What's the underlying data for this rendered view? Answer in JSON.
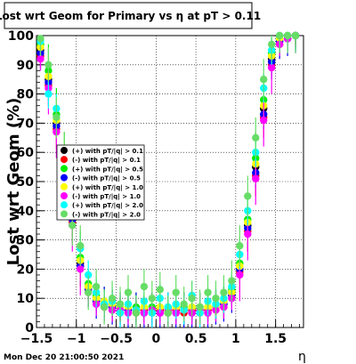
{
  "page": {
    "timestamp": "Mon Dec 20 21:00:50 2021"
  },
  "chart_data": {
    "type": "scatter",
    "title": "Lost wrt Geom for Primary vs  η at pT > 0.11",
    "xlabel": "η",
    "ylabel": "Lost wrt Geom (%)",
    "xlim": [
      -1.5,
      1.85
    ],
    "ylim": [
      0,
      100
    ],
    "x_ticks": [
      -1.5,
      -1,
      -0.5,
      0,
      0.5,
      1,
      1.5
    ],
    "x_tick_labels": [
      "−1.5",
      "−1",
      "−0.5",
      "0",
      "0.5",
      "1",
      "1.5"
    ],
    "y_ticks": [
      0,
      10,
      20,
      30,
      40,
      50,
      60,
      70,
      80,
      90,
      100
    ],
    "y_tick_labels": [
      "0",
      "10",
      "20",
      "30",
      "40",
      "50",
      "60",
      "70",
      "80",
      "90",
      "100"
    ],
    "grid": true,
    "legend_position": "left-middle",
    "series": [
      {
        "name": "(+) with pT/|q| > 0.1",
        "color": "#000000",
        "x": [
          -1.45,
          -1.35,
          -1.25,
          -1.15,
          -1.05,
          -0.95,
          -0.85,
          -0.75,
          -0.65,
          -0.55,
          -0.45,
          -0.35,
          -0.25,
          -0.15,
          -0.05,
          0.05,
          0.15,
          0.25,
          0.35,
          0.45,
          0.55,
          0.65,
          0.75,
          0.85,
          0.95,
          1.05,
          1.15,
          1.25,
          1.35,
          1.45,
          1.55,
          1.65,
          1.75
        ],
        "y": [
          95,
          85,
          70,
          55,
          38,
          22,
          14,
          10,
          8,
          7,
          6,
          6,
          6,
          6,
          6,
          6,
          6,
          6,
          6,
          6,
          6,
          6,
          7,
          8,
          12,
          20,
          35,
          55,
          75,
          92,
          98,
          99,
          100
        ]
      },
      {
        "name": "(-) with pT/|q| > 0.1",
        "color": "#ff0000",
        "x": [
          -1.45,
          -1.35,
          -1.25,
          -1.15,
          -1.05,
          -0.95,
          -0.85,
          -0.75,
          -0.65,
          -0.55,
          -0.45,
          -0.35,
          -0.25,
          -0.15,
          -0.05,
          0.05,
          0.15,
          0.25,
          0.35,
          0.45,
          0.55,
          0.65,
          0.75,
          0.85,
          0.95,
          1.05,
          1.15,
          1.25,
          1.35,
          1.45,
          1.55,
          1.65,
          1.75
        ],
        "y": [
          93,
          83,
          68,
          52,
          36,
          21,
          13,
          9,
          7,
          6,
          5,
          6,
          5,
          6,
          5,
          6,
          5,
          6,
          5,
          6,
          5,
          6,
          6,
          7,
          11,
          19,
          33,
          52,
          72,
          90,
          97,
          99,
          100
        ]
      },
      {
        "name": "(+) with pT/|q| > 0.5",
        "color": "#00ee00",
        "x": [
          -1.45,
          -1.35,
          -1.25,
          -1.15,
          -1.05,
          -0.95,
          -0.85,
          -0.75,
          -0.65,
          -0.55,
          -0.45,
          -0.35,
          -0.25,
          -0.15,
          -0.05,
          0.05,
          0.15,
          0.25,
          0.35,
          0.45,
          0.55,
          0.65,
          0.75,
          0.85,
          0.95,
          1.05,
          1.15,
          1.25,
          1.35,
          1.45,
          1.55,
          1.65,
          1.75
        ],
        "y": [
          97,
          88,
          73,
          58,
          40,
          24,
          15,
          11,
          9,
          8,
          7,
          7,
          7,
          7,
          7,
          7,
          7,
          7,
          7,
          7,
          7,
          7,
          8,
          9,
          13,
          22,
          37,
          58,
          78,
          94,
          99,
          100,
          100
        ]
      },
      {
        "name": "(-) with pT/|q| > 0.5",
        "color": "#0000ff",
        "x": [
          -1.45,
          -1.35,
          -1.25,
          -1.15,
          -1.05,
          -0.95,
          -0.85,
          -0.75,
          -0.65,
          -0.55,
          -0.45,
          -0.35,
          -0.25,
          -0.15,
          -0.05,
          0.05,
          0.15,
          0.25,
          0.35,
          0.45,
          0.55,
          0.65,
          0.75,
          0.85,
          0.95,
          1.05,
          1.15,
          1.25,
          1.35,
          1.45,
          1.55,
          1.65,
          1.75
        ],
        "y": [
          94,
          84,
          69,
          53,
          37,
          21,
          13,
          9,
          8,
          7,
          6,
          6,
          6,
          5,
          6,
          5,
          6,
          5,
          6,
          5,
          6,
          5,
          7,
          8,
          11,
          20,
          34,
          53,
          73,
          91,
          98,
          99,
          100
        ]
      },
      {
        "name": "(+) with pT/|q| > 1.0",
        "color": "#ffff00",
        "x": [
          -1.45,
          -1.35,
          -1.25,
          -1.15,
          -1.05,
          -0.95,
          -0.85,
          -0.75,
          -0.65,
          -0.55,
          -0.45,
          -0.35,
          -0.25,
          -0.15,
          -0.05,
          0.05,
          0.15,
          0.25,
          0.35,
          0.45,
          0.55,
          0.65,
          0.75,
          0.85,
          0.95,
          1.05,
          1.15,
          1.25,
          1.35,
          1.45,
          1.55,
          1.65,
          1.75
        ],
        "y": [
          96,
          86,
          71,
          56,
          39,
          23,
          14,
          10,
          9,
          8,
          7,
          7,
          6,
          7,
          6,
          7,
          6,
          7,
          6,
          7,
          6,
          7,
          7,
          9,
          12,
          21,
          36,
          56,
          76,
          93,
          99,
          100,
          100
        ]
      },
      {
        "name": "(-) with pT/|q| > 1.0",
        "color": "#ff00ff",
        "x": [
          -1.45,
          -1.35,
          -1.25,
          -1.15,
          -1.05,
          -0.95,
          -0.85,
          -0.75,
          -0.65,
          -0.55,
          -0.45,
          -0.35,
          -0.25,
          -0.15,
          -0.05,
          0.05,
          0.15,
          0.25,
          0.35,
          0.45,
          0.55,
          0.65,
          0.75,
          0.85,
          0.95,
          1.05,
          1.15,
          1.25,
          1.35,
          1.45,
          1.55,
          1.65,
          1.75
        ],
        "y": [
          92,
          82,
          67,
          51,
          35,
          20,
          12,
          8,
          7,
          6,
          6,
          5,
          6,
          5,
          6,
          5,
          6,
          5,
          6,
          5,
          6,
          5,
          6,
          7,
          10,
          18,
          32,
          51,
          71,
          89,
          97,
          99,
          100
        ]
      },
      {
        "name": "(+) with pT/|q| > 2.0",
        "color": "#00ffff",
        "x": [
          -1.45,
          -1.35,
          -1.25,
          -1.15,
          -1.05,
          -0.95,
          -0.85,
          -0.75,
          -0.65,
          -0.55,
          -0.45,
          -0.35,
          -0.25,
          -0.15,
          -0.05,
          0.05,
          0.15,
          0.25,
          0.35,
          0.45,
          0.55,
          0.65,
          0.75,
          0.85,
          0.95,
          1.05,
          1.15,
          1.25,
          1.35,
          1.45,
          1.55,
          1.65,
          1.75
        ],
        "y": [
          98,
          80,
          75,
          50,
          45,
          27,
          18,
          12,
          8,
          9,
          5,
          8,
          6,
          9,
          5,
          10,
          7,
          8,
          6,
          11,
          5,
          9,
          8,
          10,
          14,
          25,
          40,
          60,
          82,
          95,
          100,
          100,
          100
        ]
      },
      {
        "name": "(-) with pT/|q| > 2.0",
        "color": "#66dd66",
        "x": [
          -1.45,
          -1.35,
          -1.25,
          -1.15,
          -1.05,
          -0.95,
          -0.85,
          -0.75,
          -0.65,
          -0.55,
          -0.45,
          -0.35,
          -0.25,
          -0.15,
          -0.05,
          0.05,
          0.15,
          0.25,
          0.35,
          0.45,
          0.55,
          0.65,
          0.75,
          0.85,
          0.95,
          1.05,
          1.15,
          1.25,
          1.35,
          1.45,
          1.55,
          1.65,
          1.75
        ],
        "y": [
          99,
          90,
          72,
          60,
          35,
          28,
          12,
          14,
          7,
          10,
          8,
          12,
          5,
          14,
          10,
          13,
          5,
          12,
          8,
          10,
          7,
          12,
          10,
          12,
          16,
          28,
          45,
          65,
          85,
          97,
          100,
          100,
          100
        ]
      }
    ]
  }
}
